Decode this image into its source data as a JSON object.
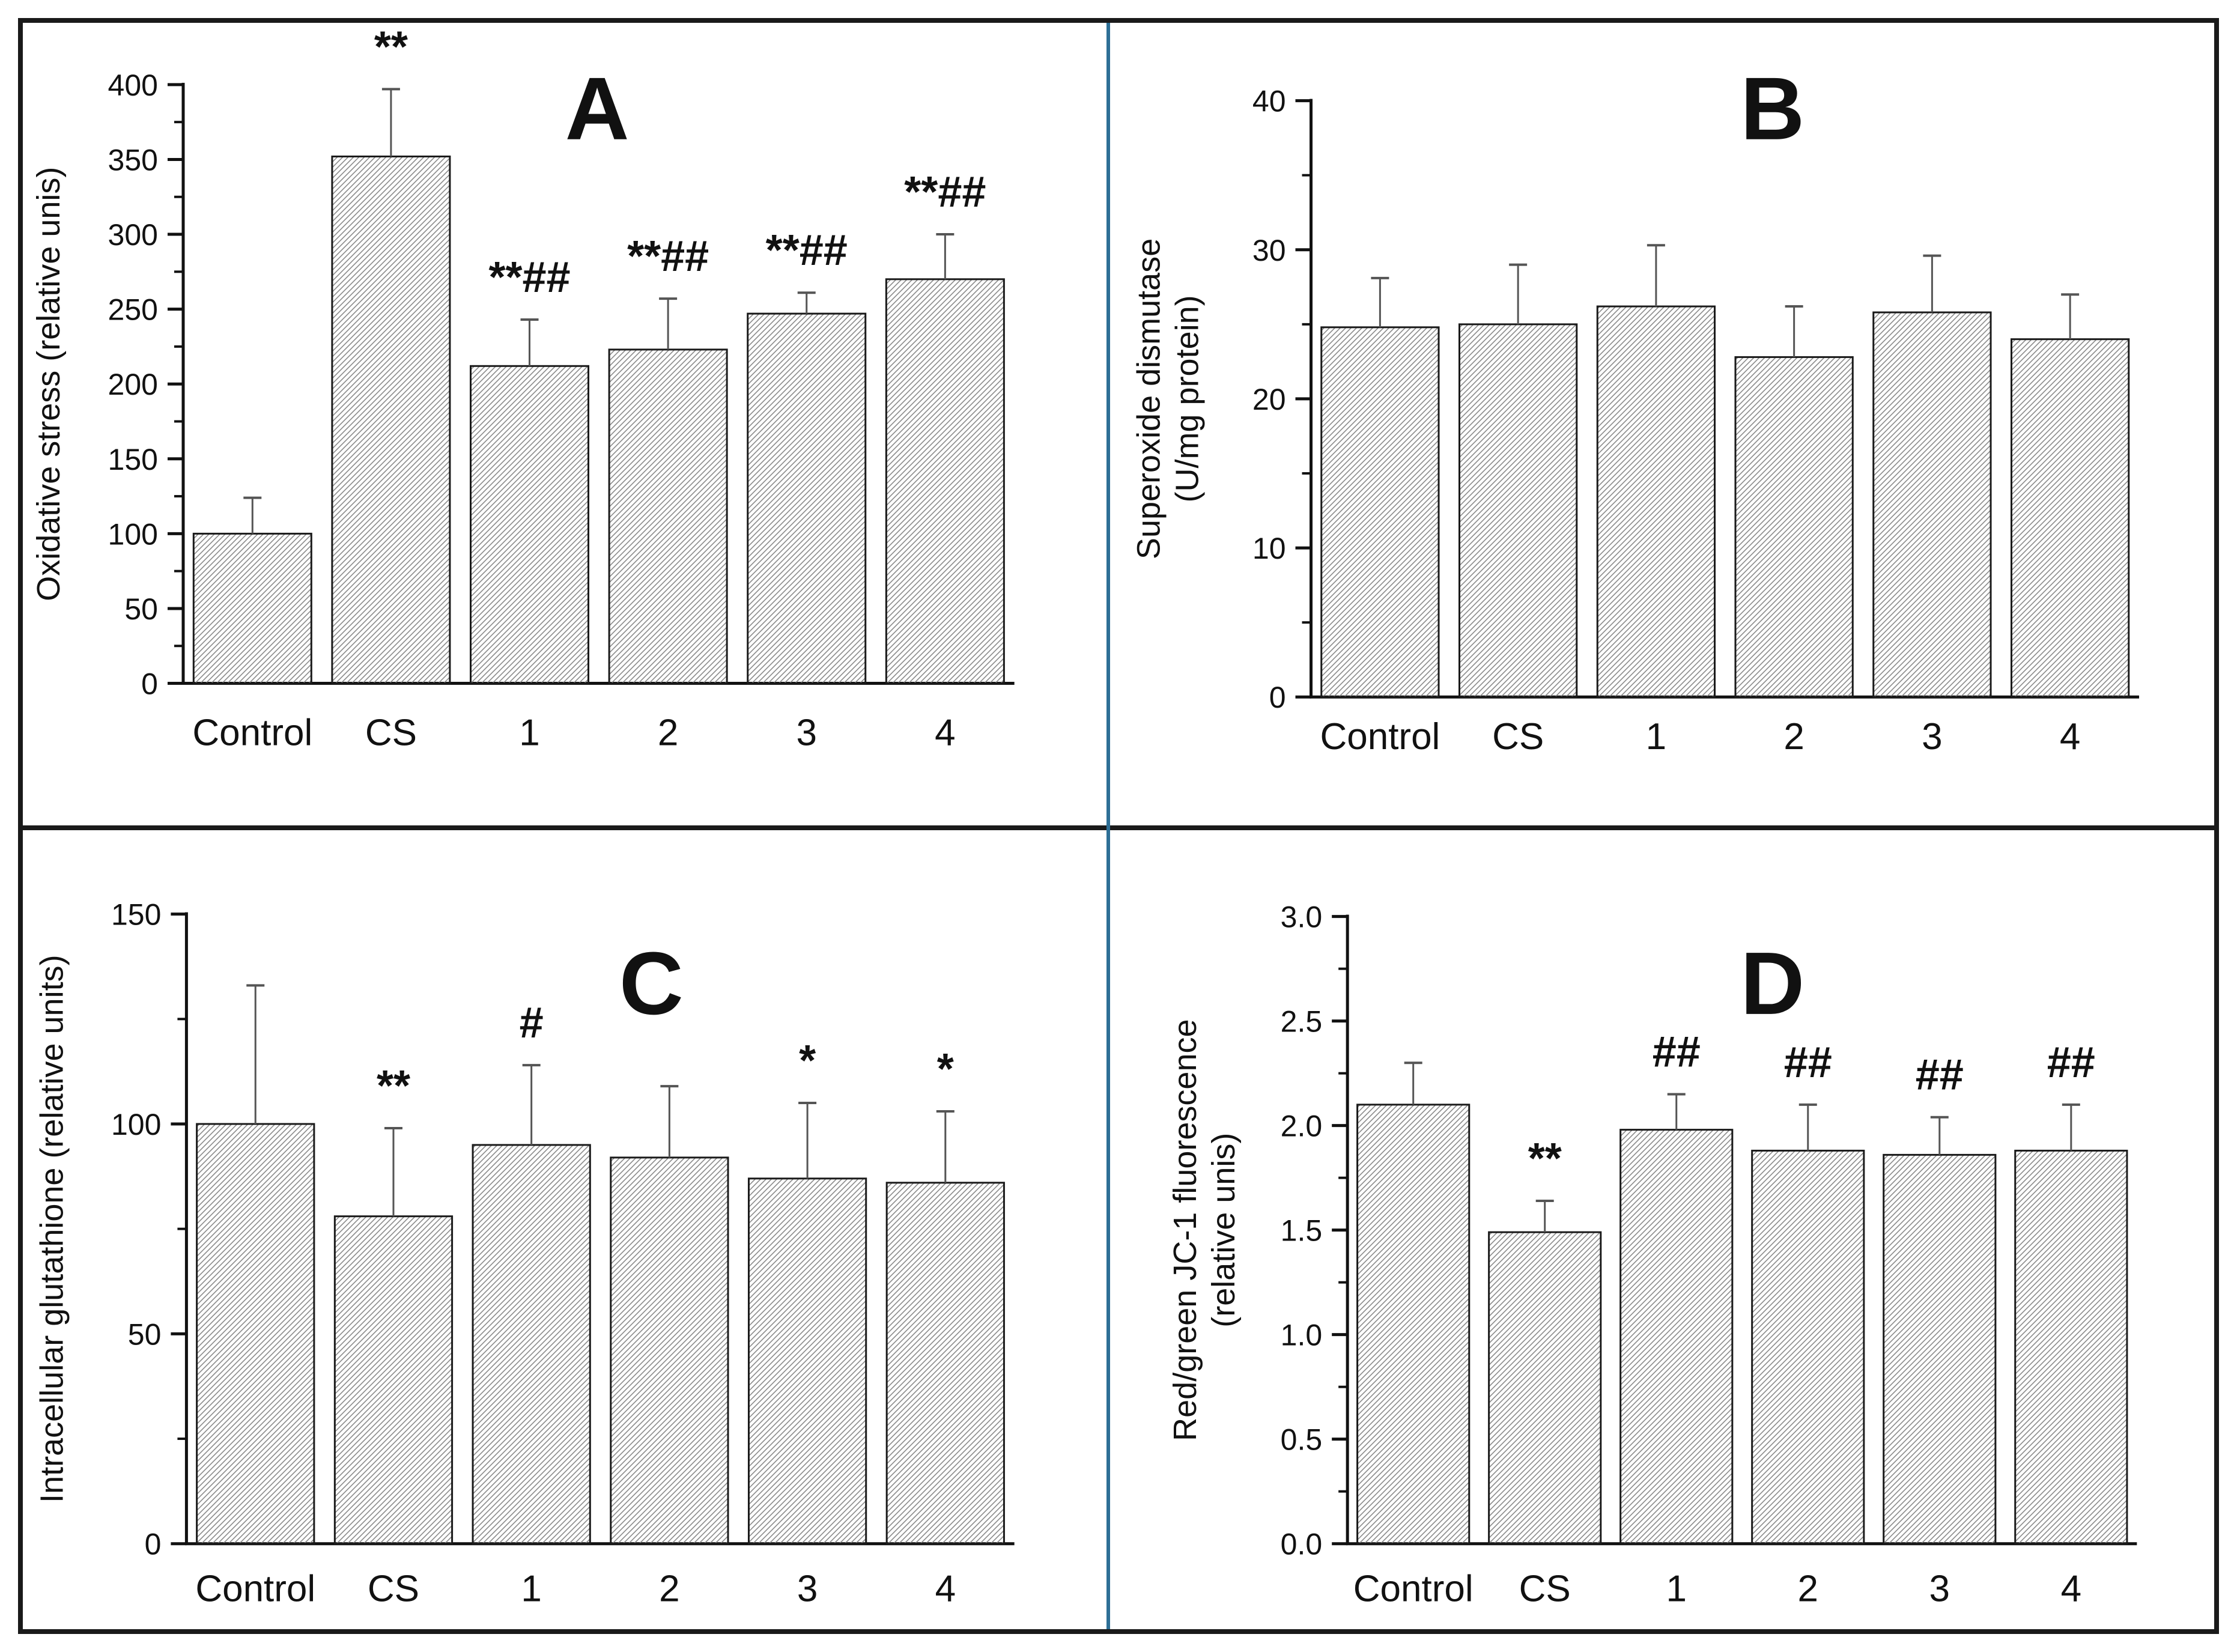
{
  "figure": {
    "panel_letters": [
      "A",
      "B",
      "C",
      "D"
    ],
    "colors": {
      "frame_black": "#1a1a1a",
      "divider_blue": "#2e6f96",
      "bar_hatch_gray": "#8a8a8a",
      "bar_outline": "#1a1a1a",
      "error_bar_gray": "#555555",
      "text_black": "#111111",
      "background": "#ffffff"
    }
  },
  "chart_data": [
    {
      "panel": "A",
      "type": "bar",
      "title": "A",
      "ylabel_lines": [
        "Oxidative stress (relative unis)"
      ],
      "categories": [
        "Control",
        "CS",
        "1",
        "2",
        "3",
        "4"
      ],
      "values": [
        100,
        352,
        212,
        223,
        247,
        270
      ],
      "errors_plus": [
        24,
        45,
        31,
        34,
        14,
        30
      ],
      "annotations": [
        "",
        "**",
        "**##",
        "**##",
        "**##",
        "**##"
      ],
      "ylim": [
        0,
        400
      ],
      "ytick_values": [
        0,
        50,
        100,
        150,
        200,
        250,
        300,
        350,
        400
      ],
      "ytick_labels": [
        "0",
        "50",
        "100",
        "150",
        "200",
        "250",
        "300",
        "350",
        "400"
      ],
      "yminor_values": [
        25,
        75,
        125,
        175,
        225,
        275,
        325,
        375
      ],
      "grid": false,
      "legend": null
    },
    {
      "panel": "B",
      "type": "bar",
      "title": "B",
      "ylabel_lines": [
        "Superoxide dismutase",
        "(U/mg protein)"
      ],
      "categories": [
        "Control",
        "CS",
        "1",
        "2",
        "3",
        "4"
      ],
      "values": [
        24.8,
        25.0,
        26.2,
        22.8,
        25.8,
        24.0
      ],
      "errors_plus": [
        3.3,
        4.0,
        4.1,
        3.4,
        3.8,
        3.0
      ],
      "annotations": [
        "",
        "",
        "",
        "",
        "",
        ""
      ],
      "ylim": [
        0,
        40
      ],
      "ytick_values": [
        0,
        10,
        20,
        30,
        40
      ],
      "ytick_labels": [
        "0",
        "10",
        "20",
        "30",
        "40"
      ],
      "yminor_values": [
        5,
        15,
        25,
        35
      ],
      "grid": false,
      "legend": null
    },
    {
      "panel": "C",
      "type": "bar",
      "title": "C",
      "ylabel_lines": [
        "Intracellular glutathione (relative units)"
      ],
      "categories": [
        "Control",
        "CS",
        "1",
        "2",
        "3",
        "4"
      ],
      "values": [
        100,
        78,
        95,
        92,
        87,
        86
      ],
      "errors_plus": [
        33,
        21,
        19,
        17,
        18,
        17
      ],
      "annotations": [
        "",
        "**",
        "#",
        "",
        "*",
        "*"
      ],
      "ylim": [
        0,
        150
      ],
      "ytick_values": [
        0,
        50,
        100,
        150
      ],
      "ytick_labels": [
        "0",
        "50",
        "100",
        "150"
      ],
      "yminor_values": [
        25,
        75,
        125
      ],
      "grid": false,
      "legend": null
    },
    {
      "panel": "D",
      "type": "bar",
      "title": "D",
      "ylabel_lines": [
        "Red/green JC-1 fluorescence",
        "(relative unis)"
      ],
      "categories": [
        "Control",
        "CS",
        "1",
        "2",
        "3",
        "4"
      ],
      "values": [
        2.1,
        1.49,
        1.98,
        1.88,
        1.86,
        1.88
      ],
      "errors_plus": [
        0.2,
        0.15,
        0.17,
        0.22,
        0.18,
        0.22
      ],
      "annotations": [
        "",
        "**",
        "##",
        "##",
        "##",
        "##"
      ],
      "ylim": [
        0,
        3.0
      ],
      "ytick_values": [
        0,
        0.5,
        1.0,
        1.5,
        2.0,
        2.5,
        3.0
      ],
      "ytick_labels": [
        "0.0",
        "0.5",
        "1.0",
        "1.5",
        "2.0",
        "2.5",
        "3.0"
      ],
      "yminor_values": [
        0.25,
        0.75,
        1.25,
        1.75,
        2.25,
        2.75
      ],
      "grid": false,
      "legend": null
    }
  ]
}
